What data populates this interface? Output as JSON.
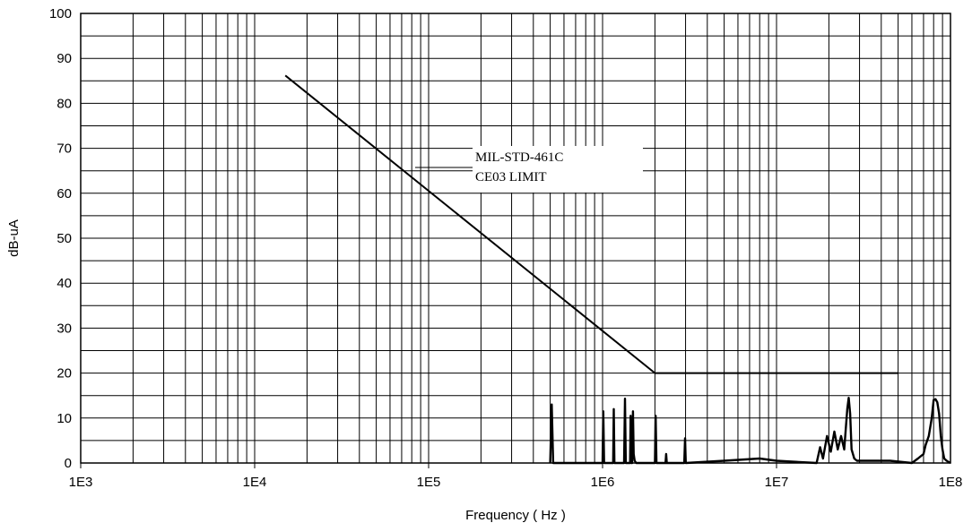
{
  "chart_data": {
    "type": "line",
    "title": "",
    "xlabel": "Frequency ( Hz )",
    "ylabel": "dB-uA",
    "xscale": "log",
    "xlim": [
      1000,
      100000000
    ],
    "ylim": [
      0,
      100
    ],
    "grid": true,
    "x_tick_labels": [
      "1E3",
      "1E4",
      "1E5",
      "1E6",
      "1E7",
      "1E8"
    ],
    "y_tick_labels": [
      "0",
      "10",
      "20",
      "30",
      "40",
      "50",
      "60",
      "70",
      "80",
      "90",
      "100"
    ],
    "annotation_lines": [
      "MIL-STD-461C",
      "CE03 LIMIT"
    ],
    "series": [
      {
        "role": "limit",
        "x": [
          15000,
          2000000,
          50000000
        ],
        "y": [
          86.2,
          20,
          20
        ]
      },
      {
        "role": "measured",
        "x": [
          500000,
          510000,
          520000,
          1000000,
          1010000,
          1020000,
          1150000,
          1160000,
          1170000,
          1330000,
          1345000,
          1360000,
          1440000,
          1450000,
          1460000,
          1480000,
          1495000,
          1510000,
          1530000,
          1560000,
          1600000,
          2000000,
          2020000,
          2040000,
          2300000,
          2320000,
          2340000,
          2950000,
          2980000,
          3010000,
          5000000,
          8000000,
          10000000,
          17000000,
          17800000,
          18500000,
          19500000,
          20500000,
          21500000,
          22500000,
          23500000,
          24500000,
          25500000,
          26000000,
          26500000,
          27000000,
          28000000,
          29000000,
          35000000,
          45000000,
          60000000,
          65000000,
          70000000,
          72000000,
          75000000,
          78000000,
          80000000,
          82000000,
          84000000,
          86000000,
          88000000,
          90000000,
          92000000,
          95000000,
          100000000
        ],
        "y": [
          0,
          13,
          0,
          0,
          11.5,
          0,
          0,
          12,
          0,
          0,
          14.3,
          0,
          0,
          10.5,
          0,
          0,
          11.5,
          2,
          0.5,
          0,
          0,
          0,
          10.5,
          0,
          0,
          2,
          0,
          0,
          5.5,
          0,
          0.5,
          1,
          0.5,
          0,
          3.5,
          1,
          6,
          2.5,
          7,
          3,
          6,
          3,
          12,
          14.5,
          11,
          3,
          1,
          0.5,
          0.5,
          0.5,
          0,
          1,
          2,
          4,
          6,
          10,
          14,
          14.2,
          13.5,
          11,
          6,
          3,
          1,
          0.5,
          0
        ]
      }
    ]
  }
}
